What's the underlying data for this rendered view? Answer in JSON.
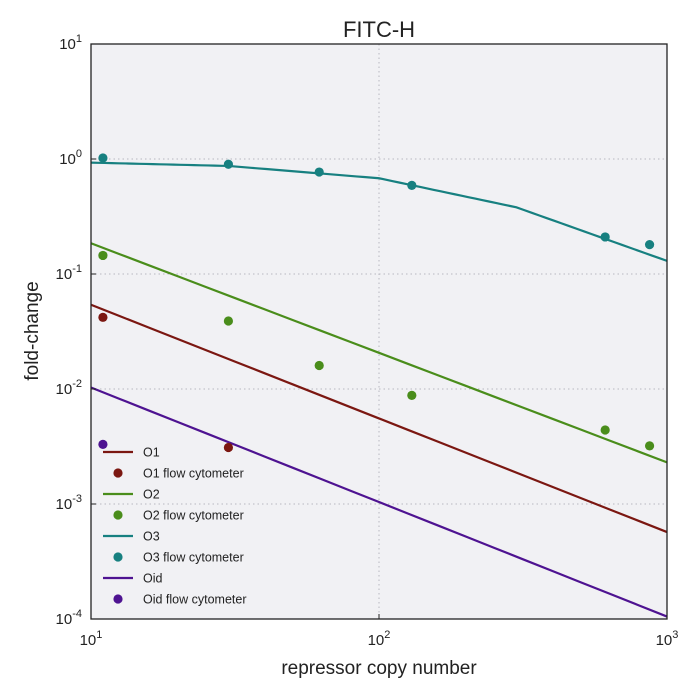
{
  "chart_data": {
    "type": "scatter",
    "title": "FITC-H",
    "xlabel": "repressor copy number",
    "ylabel": "fold-change",
    "xscale": "log",
    "yscale": "log",
    "xlim": [
      10,
      1000
    ],
    "ylim": [
      0.0001,
      10
    ],
    "grid": true,
    "legend_position": "lower-left",
    "x_ticks": [
      {
        "base": "10",
        "exp": "1",
        "value": 10
      },
      {
        "base": "10",
        "exp": "2",
        "value": 100
      },
      {
        "base": "10",
        "exp": "3",
        "value": 1000
      }
    ],
    "y_ticks": [
      {
        "base": "10",
        "exp": "-4",
        "value": 0.0001
      },
      {
        "base": "10",
        "exp": "-3",
        "value": 0.001
      },
      {
        "base": "10",
        "exp": "-2",
        "value": 0.01
      },
      {
        "base": "10",
        "exp": "-1",
        "value": 0.1
      },
      {
        "base": "10",
        "exp": "0",
        "value": 1
      },
      {
        "base": "10",
        "exp": "1",
        "value": 10
      }
    ],
    "series": [
      {
        "name": "O1",
        "kind": "line",
        "color": "#7b1711",
        "x": [
          10,
          1000
        ],
        "y": [
          0.054,
          0.00057
        ]
      },
      {
        "name": "O1 flow cytometer",
        "kind": "scatter",
        "color": "#7b1711",
        "x": [
          11,
          30
        ],
        "y": [
          0.042,
          0.0031
        ]
      },
      {
        "name": "O2",
        "kind": "line",
        "color": "#4a8d1b",
        "x": [
          10,
          1000
        ],
        "y": [
          0.185,
          0.0023
        ]
      },
      {
        "name": "O2 flow cytometer",
        "kind": "scatter",
        "color": "#4a8d1b",
        "x": [
          11,
          30,
          62,
          130,
          610,
          870
        ],
        "y": [
          0.145,
          0.039,
          0.016,
          0.0088,
          0.0044,
          0.0032
        ]
      },
      {
        "name": "O3",
        "kind": "line",
        "color": "#178080",
        "x": [
          10,
          30,
          100,
          300,
          1000
        ],
        "y": [
          0.93,
          0.87,
          0.68,
          0.38,
          0.13
        ]
      },
      {
        "name": "O3 flow cytometer",
        "kind": "scatter",
        "color": "#178080",
        "x": [
          11,
          30,
          62,
          130,
          610,
          870
        ],
        "y": [
          1.02,
          0.9,
          0.77,
          0.59,
          0.21,
          0.18
        ]
      },
      {
        "name": "Oid",
        "kind": "line",
        "color": "#4e1391",
        "x": [
          10,
          1000
        ],
        "y": [
          0.0103,
          0.000105
        ]
      },
      {
        "name": "Oid flow cytometer",
        "kind": "scatter",
        "color": "#4e1391",
        "x": [
          11
        ],
        "y": [
          0.0033
        ]
      }
    ]
  }
}
